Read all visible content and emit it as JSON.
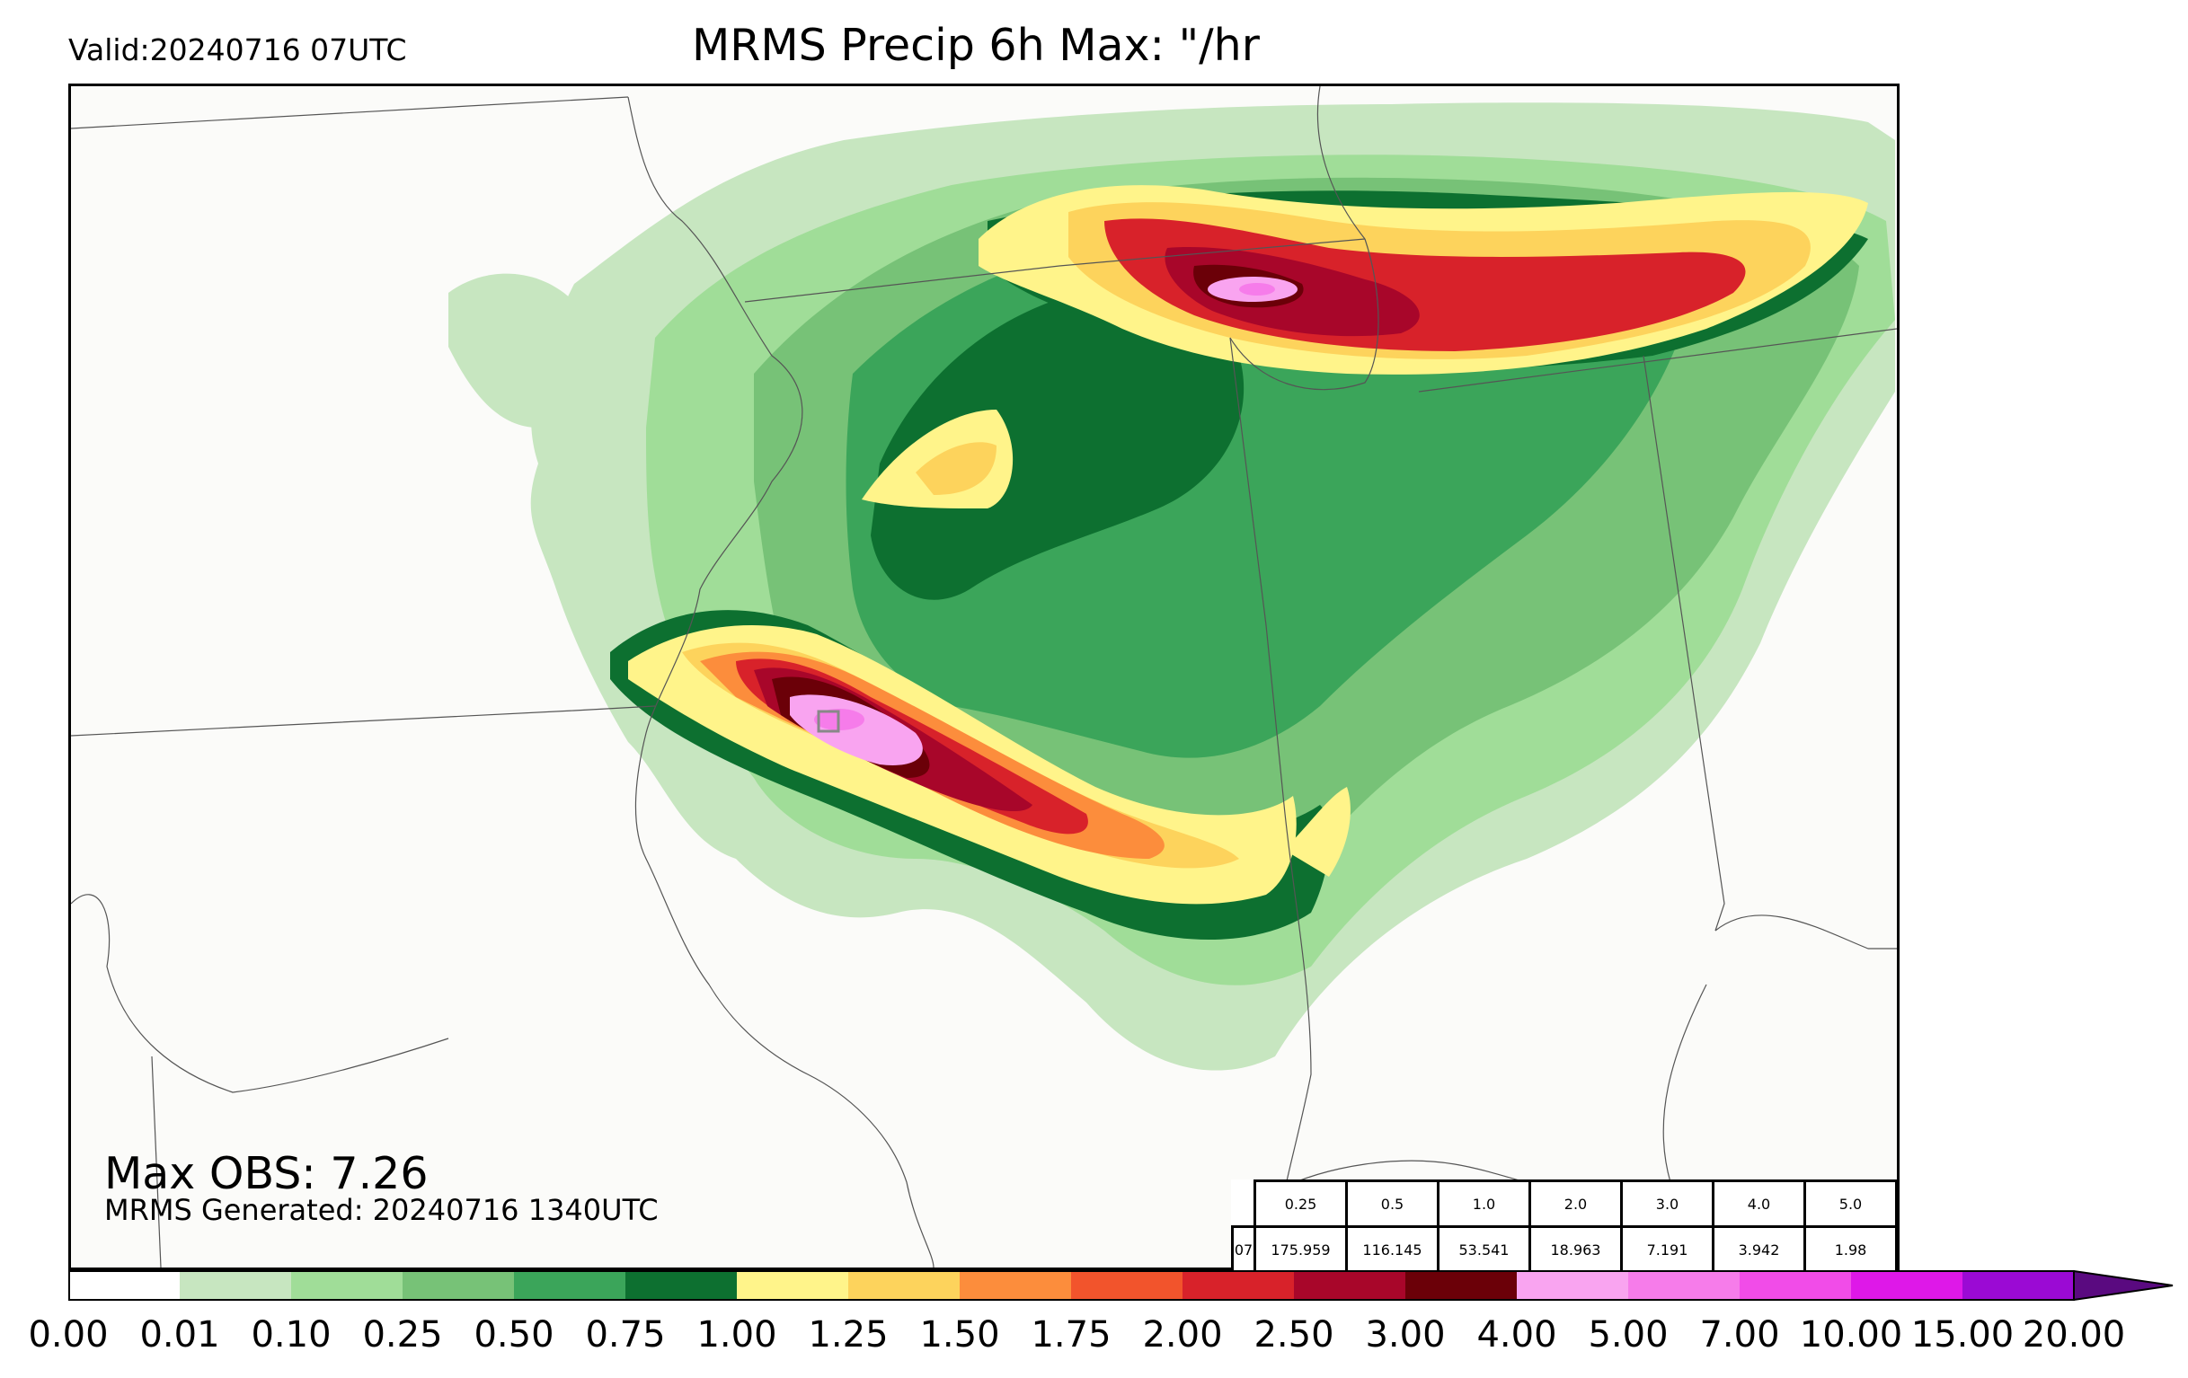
{
  "header": {
    "valid": "Valid:20240716 07UTC",
    "title": "MRMS Precip 6h Max: \"/hr"
  },
  "footer": {
    "max_obs": "Max OBS: 7.26",
    "generated": "MRMS Generated: 20240716 1340UTC"
  },
  "stats_table": {
    "thresholds": [
      "0.25",
      "0.5",
      "1.0",
      "2.0",
      "3.0",
      "4.0",
      "5.0"
    ],
    "row_label": "07",
    "values": [
      "175.959",
      "116.145",
      "53.541",
      "18.963",
      "7.191",
      "3.942",
      "1.98"
    ]
  },
  "colorbar": {
    "ticks": [
      "0.00",
      "0.01",
      "0.10",
      "0.25",
      "0.50",
      "0.75",
      "1.00",
      "1.25",
      "1.50",
      "1.75",
      "2.00",
      "2.50",
      "3.00",
      "4.00",
      "5.00",
      "7.00",
      "10.00",
      "15.00",
      "20.00"
    ],
    "colors": [
      "#ffffff",
      "#c7e6c0",
      "#a0dd98",
      "#77c277",
      "#3ba55a",
      "#0d7030",
      "#fff48a",
      "#fdd35c",
      "#fc8d3c",
      "#f2542c",
      "#d8222a",
      "#a8062a",
      "#6b0008",
      "#f9a4f0",
      "#f67cea",
      "#f14ce8",
      "#de18e8",
      "#9b0ad4"
    ],
    "extend_color": "#5a0a80"
  },
  "map": {
    "colors": {
      "light_green": "#c7e6c0",
      "green_2": "#a0dd98",
      "green_3": "#77c277",
      "green_4": "#3ba55a",
      "dark_green": "#0d7030",
      "yellow": "#fff48a",
      "gold": "#fdd35c",
      "orange": "#fc8d3c",
      "red_orange": "#f2542c",
      "red": "#d8222a",
      "crimson": "#a8062a",
      "maroon": "#6b0008",
      "pink": "#f9a4f0",
      "magenta": "#f67cea"
    }
  }
}
